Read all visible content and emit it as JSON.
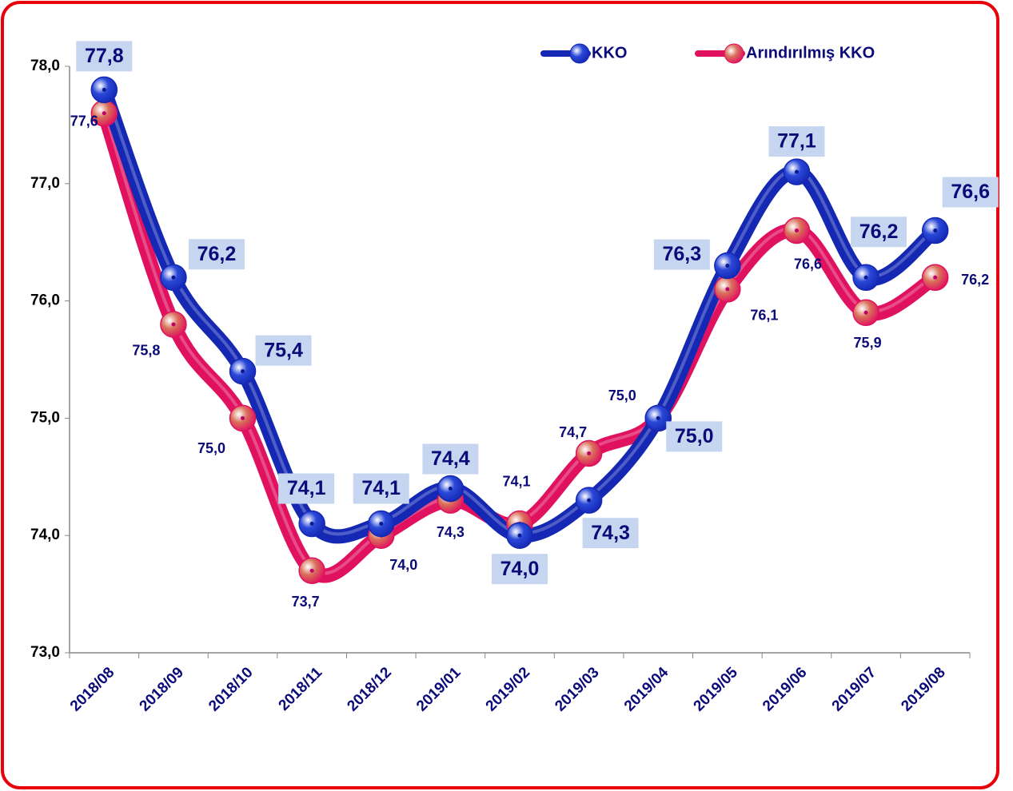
{
  "chart_data": {
    "type": "line",
    "categories": [
      "2018/08",
      "2018/09",
      "2018/10",
      "2018/11",
      "2018/12",
      "2019/01",
      "2019/02",
      "2019/03",
      "2019/04",
      "2019/05",
      "2019/06",
      "2019/07",
      "2019/08"
    ],
    "series": [
      {
        "name": "KKO",
        "color": "#1428b4",
        "marker_color": "#2a48d8",
        "values": [
          77.8,
          76.2,
          75.4,
          74.1,
          74.1,
          74.4,
          74.0,
          74.3,
          75.0,
          76.3,
          77.1,
          76.2,
          76.6
        ],
        "value_labels": [
          "77,8",
          "76,2",
          "75,4",
          "74,1",
          "74,1",
          "74,4",
          "74,0",
          "74,3",
          "75,0",
          "76,3",
          "77,1",
          "76,2",
          "76,6"
        ]
      },
      {
        "name": "Arındırılmış KKO",
        "color": "#e0115f",
        "marker_color": "#d9705a",
        "values": [
          77.6,
          75.8,
          75.0,
          73.7,
          74.0,
          74.3,
          74.1,
          74.7,
          75.0,
          76.1,
          76.6,
          75.9,
          76.2
        ],
        "value_labels": [
          "77,6",
          "75,8",
          "75,0",
          "73,7",
          "74,0",
          "74,3",
          "74,1",
          "74,7",
          "75,0",
          "76,1",
          "76,6",
          "75,9",
          "76,2"
        ]
      }
    ],
    "ylim": [
      73,
      78
    ],
    "yticks": [
      {
        "value": 73,
        "label": "73,0"
      },
      {
        "value": 74,
        "label": "74,0"
      },
      {
        "value": 75,
        "label": "75,0"
      },
      {
        "value": 76,
        "label": "76,0"
      },
      {
        "value": 77,
        "label": "77,0"
      },
      {
        "value": 78,
        "label": "78,0"
      }
    ],
    "grid": false,
    "legend": "top-right"
  }
}
